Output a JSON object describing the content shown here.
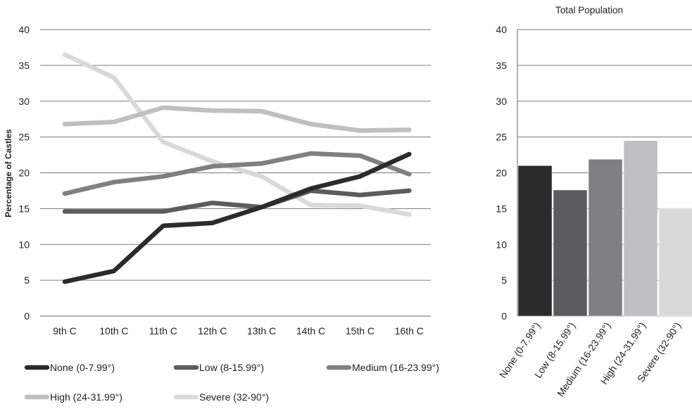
{
  "chart_data": [
    {
      "type": "line",
      "title": "",
      "xlabel": "",
      "ylabel": "Percentage of Castles",
      "ylim": [
        0,
        40
      ],
      "yticks": [
        0,
        5,
        10,
        15,
        20,
        25,
        30,
        35,
        40
      ],
      "grid": true,
      "legend_position": "bottom",
      "categories": [
        "9th C",
        "10th C",
        "11th C",
        "12th C",
        "13th C",
        "14th C",
        "15th C",
        "16th C"
      ],
      "series": [
        {
          "name": "None (0-7.99°)",
          "color": "#2b2b2b",
          "values": [
            4.8,
            6.3,
            12.6,
            13.0,
            15.2,
            17.8,
            19.5,
            22.6
          ]
        },
        {
          "name": "Low (8-15.99°)",
          "color": "#5c5c5e",
          "values": [
            14.6,
            14.6,
            14.6,
            15.8,
            15.2,
            17.5,
            16.9,
            17.5
          ]
        },
        {
          "name": "Medium (16-23.99°)",
          "color": "#808082",
          "values": [
            17.1,
            18.7,
            19.5,
            20.9,
            21.3,
            22.7,
            22.4,
            19.8
          ]
        },
        {
          "name": "High (24-31.99°)",
          "color": "#bfbfc2",
          "values": [
            26.8,
            27.1,
            29.1,
            28.7,
            28.6,
            26.8,
            25.9,
            26.0
          ]
        },
        {
          "name": "Severe (32-90°)",
          "color": "#d9d9d9",
          "values": [
            36.5,
            33.3,
            24.3,
            21.6,
            19.5,
            15.5,
            15.4,
            14.2
          ]
        }
      ]
    },
    {
      "type": "bar",
      "title": "Total Population",
      "xlabel": "",
      "ylabel": "",
      "ylim": [
        0,
        40
      ],
      "yticks": [
        0,
        5,
        10,
        15,
        20,
        25,
        30,
        35,
        40
      ],
      "grid": true,
      "categories": [
        "None (0-7.99°)",
        "Low (8-15.99°)",
        "Medium (16-23.99°)",
        "High (24-31.99°)",
        "Severe (32-90°)"
      ],
      "values": [
        21.0,
        17.6,
        21.9,
        24.5,
        15.0
      ],
      "colors": [
        "#2b2b2b",
        "#5c5c5e",
        "#808082",
        "#bfbfc2",
        "#d9d9d9"
      ]
    }
  ]
}
